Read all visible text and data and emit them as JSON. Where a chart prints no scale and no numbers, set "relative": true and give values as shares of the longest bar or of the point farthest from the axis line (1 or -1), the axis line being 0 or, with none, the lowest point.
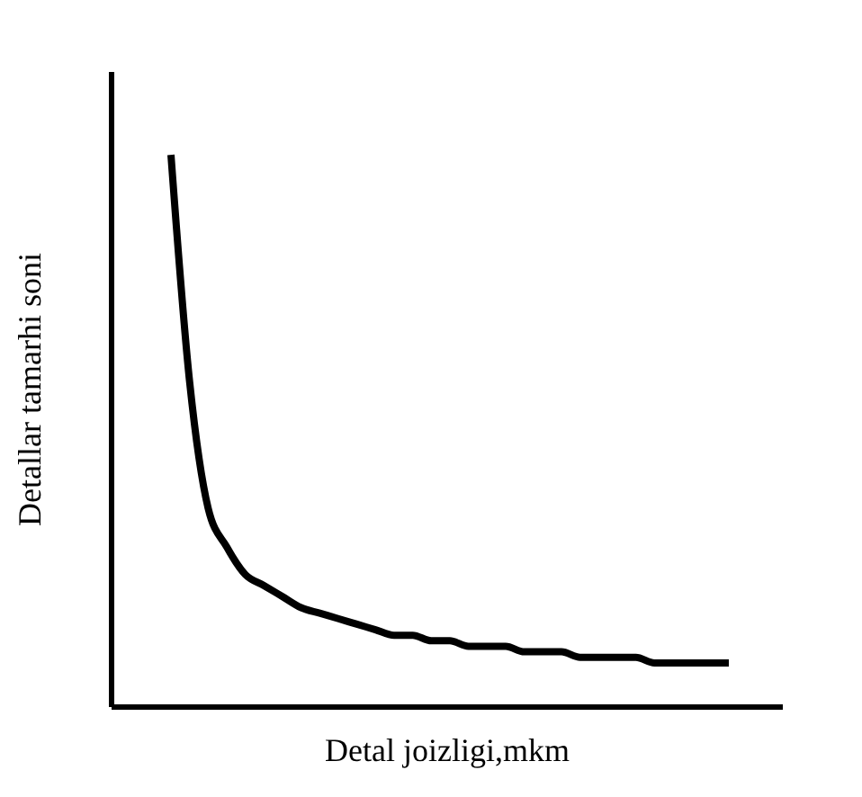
{
  "chart_data": {
    "type": "line",
    "relative": true,
    "xlabel": "Detal joizligi,mkm",
    "ylabel": "Detallar tamarhi soni",
    "categories": [
      null,
      null,
      null,
      null,
      null,
      null,
      null,
      null,
      null,
      null,
      null,
      null,
      null,
      null,
      null,
      null,
      null,
      null,
      null,
      null,
      null,
      null,
      null,
      null,
      null,
      null,
      null,
      null,
      null,
      null,
      null
    ],
    "series": [
      {
        "color": "#000000",
        "values": [
          1,
          0.59,
          0.36,
          0.29,
          0.24,
          0.22,
          0.2,
          0.18,
          0.17,
          0.16,
          0.15,
          0.14,
          0.13,
          0.13,
          0.12,
          0.12,
          0.11,
          0.11,
          0.11,
          0.1,
          0.1,
          0.1,
          0.09,
          0.09,
          0.09,
          0.09,
          0.08,
          0.08,
          0.08,
          0.08,
          0.08
        ]
      }
    ],
    "grid": false,
    "legend": false,
    "marker": "none",
    "line_style": "solid"
  }
}
